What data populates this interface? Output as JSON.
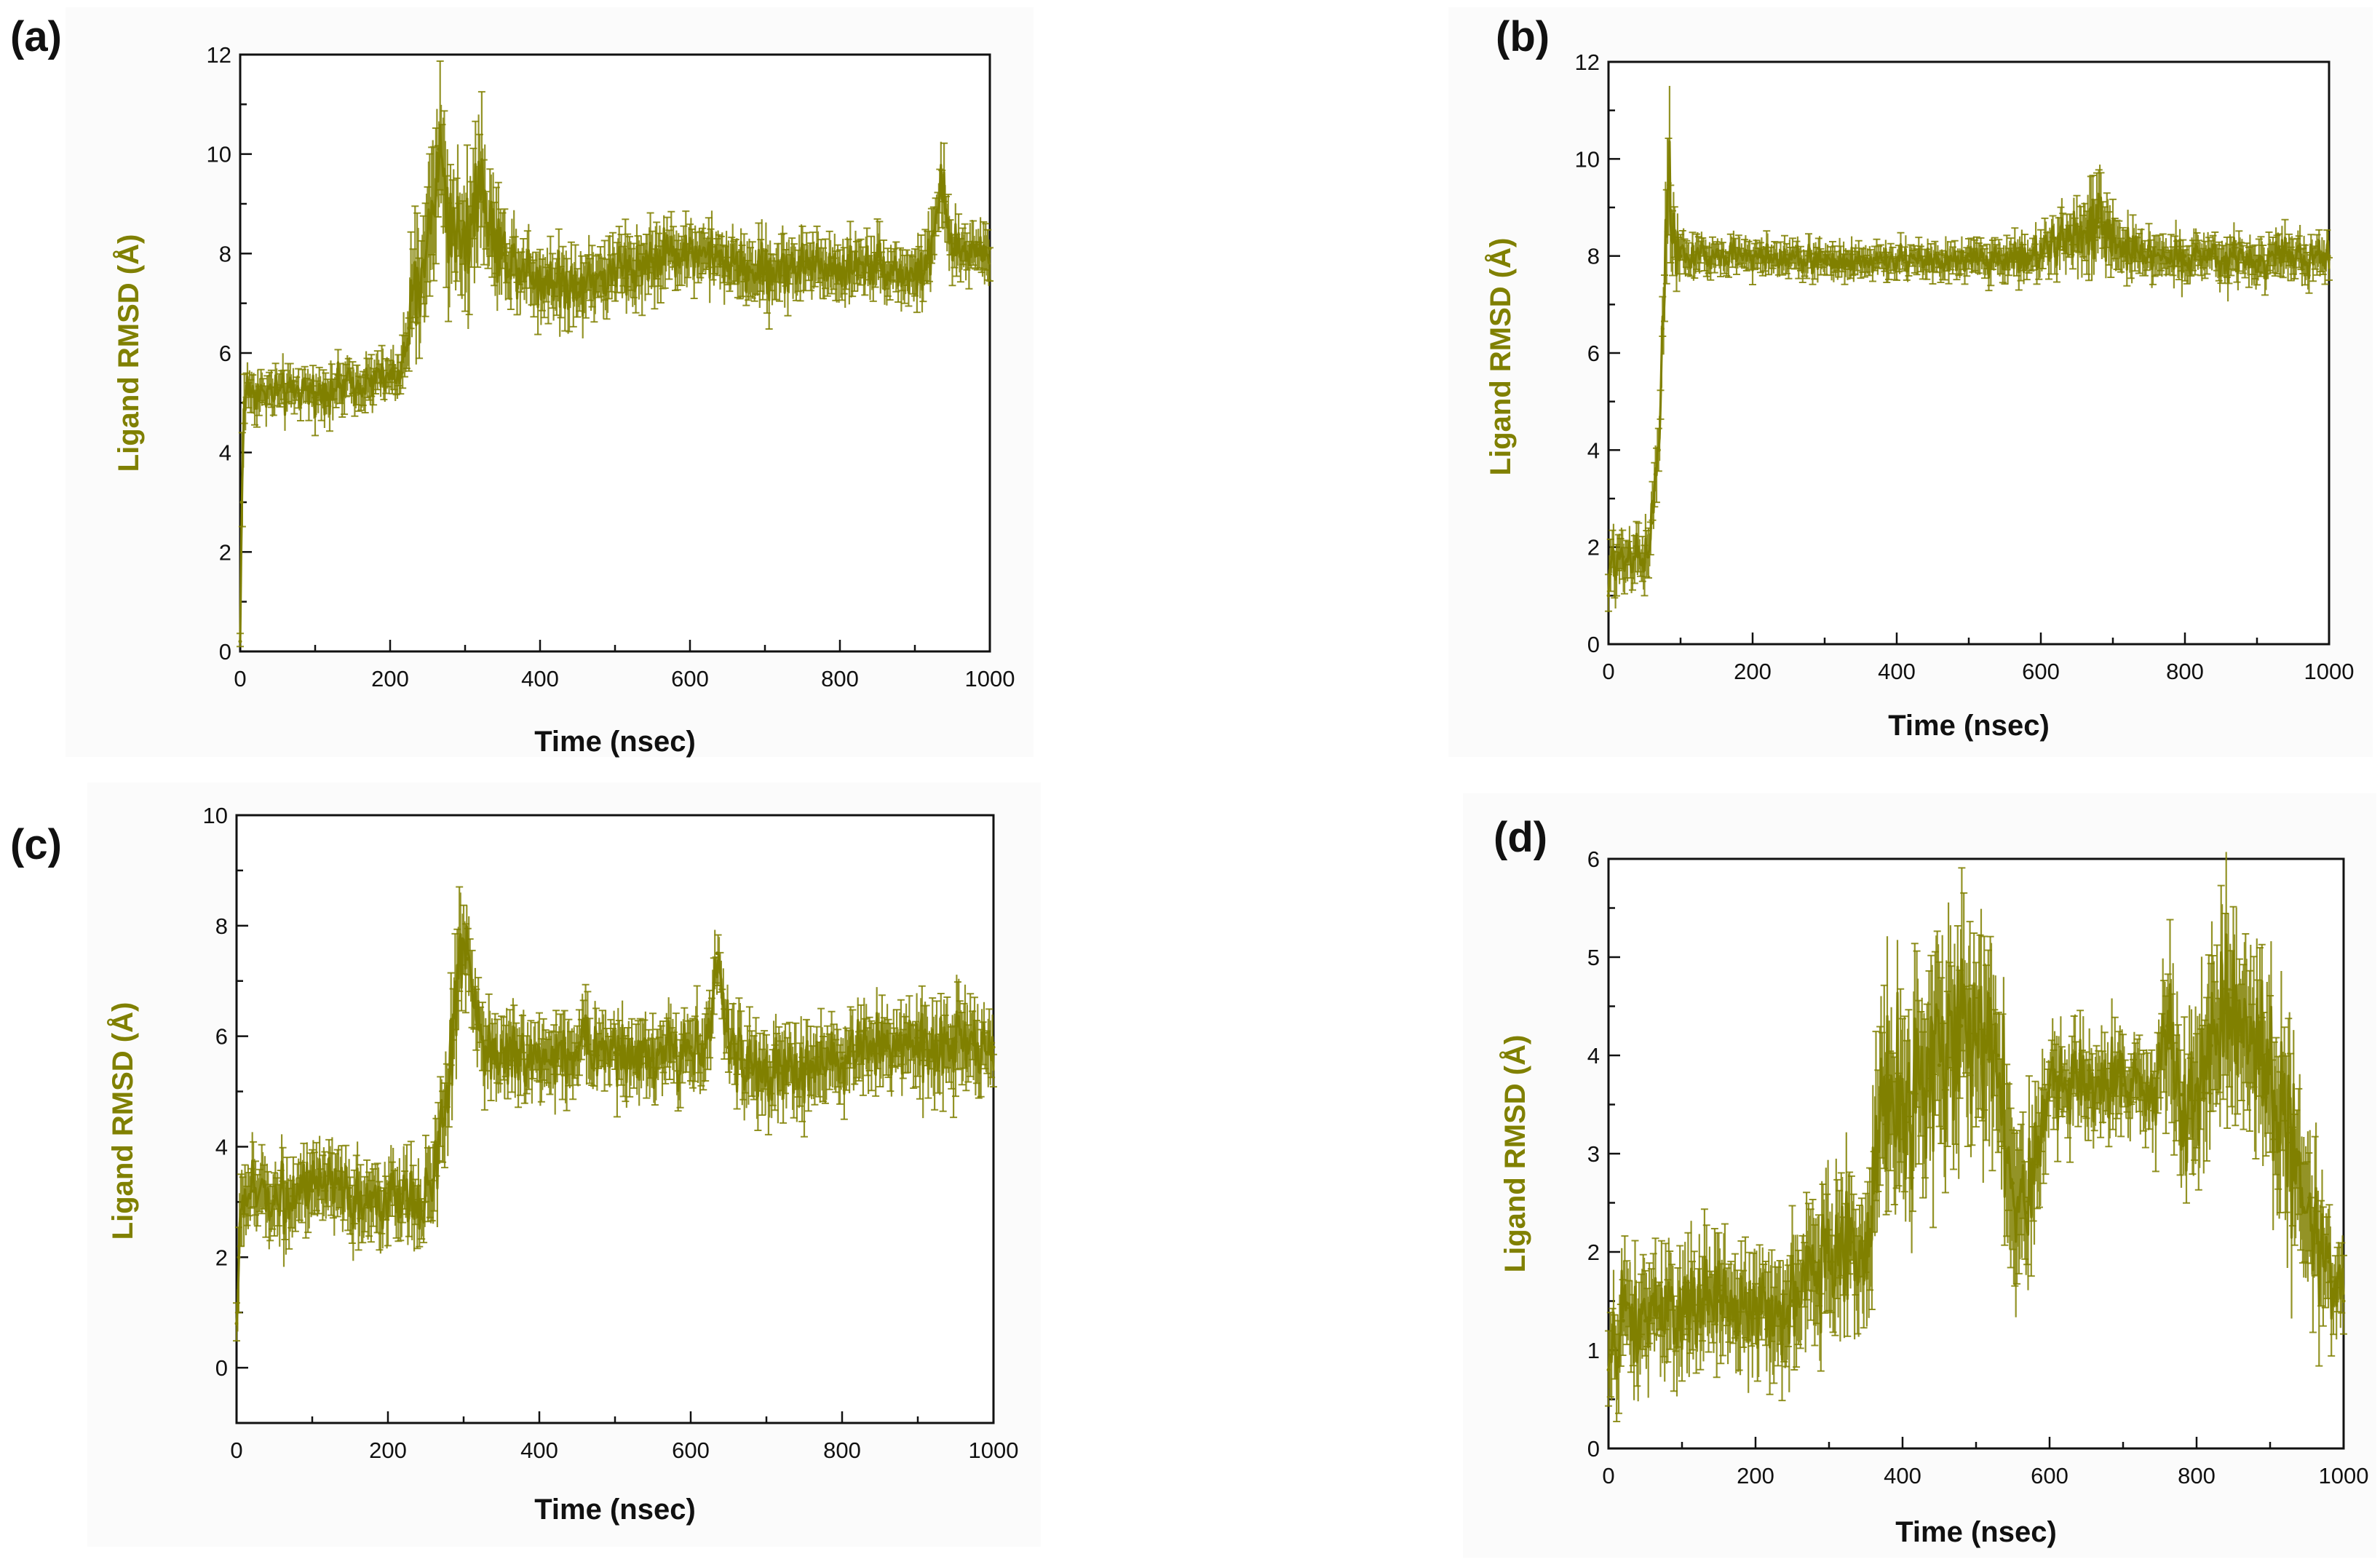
{
  "figure": {
    "series_color": "#808000"
  },
  "chart_data": [
    {
      "panel_label": "(a)",
      "type": "line",
      "title": "",
      "xlabel": "Time (nsec)",
      "ylabel": "Ligand RMSD (Å)",
      "xlim": [
        0,
        1000
      ],
      "ylim": [
        0,
        12
      ],
      "xticks": [
        0,
        200,
        400,
        600,
        800,
        1000
      ],
      "yticks": [
        0,
        2,
        4,
        6,
        8,
        10,
        12
      ],
      "grid": false,
      "series": [
        {
          "name": "Ligand RMSD",
          "x": [
            0,
            2,
            5,
            10,
            20,
            50,
            100,
            150,
            200,
            215,
            225,
            240,
            255,
            265,
            280,
            300,
            320,
            330,
            350,
            400,
            450,
            500,
            550,
            600,
            650,
            700,
            750,
            800,
            850,
            900,
            920,
            935,
            950,
            1000
          ],
          "y": [
            0.2,
            3.0,
            5.0,
            5.3,
            5.2,
            5.2,
            5.2,
            5.4,
            5.5,
            5.6,
            6.5,
            7.4,
            8.8,
            10.1,
            8.6,
            8.3,
            9.6,
            8.6,
            8.0,
            7.5,
            7.4,
            7.6,
            7.9,
            8.1,
            7.8,
            7.6,
            7.8,
            7.7,
            7.8,
            7.5,
            7.9,
            9.4,
            8.0,
            8.1
          ],
          "error": [
            0.2,
            1.2,
            0.5,
            0.4,
            0.4,
            0.4,
            0.4,
            0.4,
            0.4,
            0.5,
            0.9,
            1.2,
            1.4,
            1.4,
            1.1,
            1.0,
            1.4,
            1.0,
            0.7,
            0.6,
            0.6,
            0.6,
            0.6,
            0.5,
            0.5,
            0.6,
            0.5,
            0.5,
            0.5,
            0.5,
            0.6,
            0.6,
            0.5,
            0.5
          ]
        }
      ]
    },
    {
      "panel_label": "(b)",
      "type": "line",
      "title": "",
      "xlabel": "Time (nsec)",
      "ylabel": "Ligand RMSD (Å)",
      "xlim": [
        0,
        1000
      ],
      "ylim": [
        0,
        12
      ],
      "xticks": [
        0,
        200,
        400,
        600,
        800,
        1000
      ],
      "yticks": [
        0,
        2,
        4,
        6,
        8,
        10,
        12
      ],
      "grid": false,
      "series": [
        {
          "name": "Ligand RMSD",
          "x": [
            0,
            5,
            20,
            40,
            55,
            60,
            65,
            70,
            75,
            80,
            85,
            90,
            100,
            150,
            200,
            300,
            400,
            500,
            600,
            640,
            660,
            680,
            700,
            750,
            800,
            900,
            1000
          ],
          "y": [
            1.0,
            1.8,
            1.8,
            1.9,
            1.8,
            2.5,
            3.5,
            4.0,
            6.5,
            8.5,
            9.5,
            8.3,
            8.0,
            8.0,
            8.0,
            7.9,
            7.9,
            7.9,
            8.0,
            8.4,
            8.5,
            8.6,
            8.3,
            8.0,
            8.0,
            7.9,
            8.0
          ],
          "error": [
            0.5,
            0.6,
            0.5,
            0.5,
            0.5,
            0.5,
            0.5,
            0.6,
            0.7,
            1.0,
            1.2,
            0.6,
            0.4,
            0.3,
            0.3,
            0.3,
            0.3,
            0.3,
            0.4,
            0.5,
            0.6,
            0.8,
            0.5,
            0.4,
            0.4,
            0.4,
            0.4
          ]
        }
      ]
    },
    {
      "panel_label": "(c)",
      "type": "line",
      "title": "",
      "xlabel": "Time (nsec)",
      "ylabel": "Ligand RMSD (Å)",
      "xlim": [
        0,
        1000
      ],
      "ylim": [
        -1,
        10
      ],
      "xticks": [
        0,
        200,
        400,
        600,
        800,
        1000
      ],
      "yticks": [
        0,
        2,
        4,
        6,
        8,
        10
      ],
      "grid": false,
      "series": [
        {
          "name": "Ligand RMSD",
          "x": [
            0,
            3,
            8,
            20,
            50,
            100,
            150,
            200,
            240,
            260,
            275,
            285,
            295,
            305,
            320,
            340,
            400,
            450,
            500,
            550,
            600,
            625,
            635,
            650,
            700,
            750,
            800,
            850,
            900,
            950,
            1000
          ],
          "y": [
            0.8,
            2.0,
            3.0,
            3.2,
            3.1,
            3.2,
            3.1,
            3.0,
            3.0,
            3.4,
            4.5,
            6.0,
            7.6,
            7.4,
            6.2,
            5.6,
            5.6,
            5.8,
            5.7,
            5.6,
            5.8,
            6.0,
            7.5,
            5.8,
            5.3,
            5.4,
            5.6,
            5.9,
            5.8,
            5.9,
            5.8
          ],
          "error": [
            0.4,
            0.8,
            0.7,
            0.6,
            0.6,
            0.6,
            0.6,
            0.6,
            0.6,
            0.7,
            0.8,
            0.9,
            0.9,
            0.8,
            0.7,
            0.6,
            0.6,
            0.6,
            0.6,
            0.6,
            0.6,
            0.6,
            0.5,
            0.6,
            0.6,
            0.6,
            0.6,
            0.6,
            0.6,
            0.8,
            0.6
          ]
        }
      ]
    },
    {
      "panel_label": "(d)",
      "type": "line",
      "title": "",
      "xlabel": "Time (nsec)",
      "ylabel": "Ligand RMSD (Å)",
      "xlim": [
        0,
        1000
      ],
      "ylim": [
        0,
        6
      ],
      "xticks": [
        0,
        200,
        400,
        600,
        800,
        1000
      ],
      "yticks": [
        0,
        1,
        2,
        3,
        4,
        5,
        6
      ],
      "grid": false,
      "series": [
        {
          "name": "Ligand RMSD",
          "x": [
            0,
            20,
            50,
            100,
            150,
            200,
            250,
            280,
            300,
            330,
            350,
            360,
            370,
            400,
            450,
            480,
            500,
            530,
            550,
            570,
            600,
            650,
            700,
            740,
            760,
            780,
            800,
            820,
            850,
            880,
            900,
            930,
            960,
            980,
            1000
          ],
          "y": [
            0.8,
            1.3,
            1.3,
            1.4,
            1.5,
            1.4,
            1.5,
            1.9,
            1.9,
            2.1,
            1.8,
            2.6,
            3.6,
            3.5,
            3.9,
            4.3,
            4.2,
            4.0,
            2.7,
            2.4,
            3.7,
            3.7,
            3.7,
            3.6,
            4.3,
            3.6,
            3.7,
            4.1,
            4.3,
            4.0,
            3.9,
            3.0,
            2.2,
            1.9,
            1.5
          ],
          "error": [
            0.4,
            0.5,
            0.5,
            0.5,
            0.5,
            0.5,
            0.5,
            0.6,
            0.6,
            0.6,
            0.6,
            0.8,
            0.9,
            0.9,
            0.9,
            0.9,
            0.9,
            0.9,
            0.8,
            0.7,
            0.4,
            0.4,
            0.4,
            0.4,
            0.7,
            0.6,
            0.8,
            0.8,
            0.8,
            0.8,
            0.8,
            0.9,
            0.7,
            0.5,
            0.4
          ]
        }
      ]
    }
  ]
}
